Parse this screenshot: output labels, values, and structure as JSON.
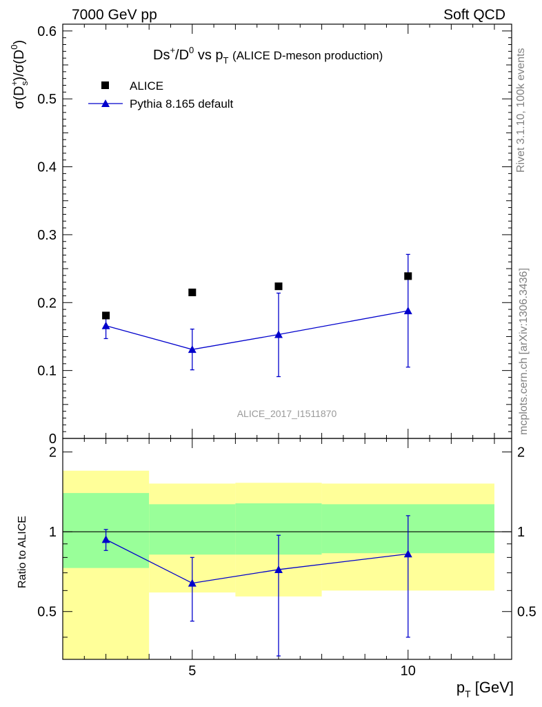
{
  "header": {
    "energy": "7000 GeV pp",
    "category": "Soft QCD"
  },
  "side_labels": {
    "rivet": "Rivet 3.1.10,  100k events",
    "mcplots": "mcplots.cern.ch [arXiv:1306.3436]"
  },
  "colors": {
    "data": "#000000",
    "mc": "#0000cc",
    "band_inner": "#99ff99",
    "band_outer": "#ffff99"
  },
  "chart_data": {
    "type": "scatter",
    "title_main": "Ds",
    "title_sup1": "+",
    "title_mid": "/D",
    "title_sup2": "0",
    "title_vs": " vs p",
    "title_sub": "T",
    "title_paren": "(ALICE D-meson production)",
    "ylabel_parts": [
      "σ(D",
      "+",
      "s",
      ")/σ(D",
      "0",
      ")"
    ],
    "xlabel_main": "p",
    "xlabel_sub": "T",
    "xlabel_unit": "[GeV]",
    "analysis_id": "ALICE_2017_I1511870",
    "xlim": [
      2,
      12.4
    ],
    "ylim": [
      0,
      0.61
    ],
    "x_ticks": [
      5,
      10
    ],
    "y_ticks": [
      0,
      0.1,
      0.2,
      0.3,
      0.4,
      0.5,
      0.6
    ],
    "y_tick_labels": [
      "0",
      "0.1",
      "0.2",
      "0.3",
      "0.4",
      "0.5",
      "0.6"
    ],
    "legend": [
      {
        "name": "ALICE",
        "marker": "square"
      },
      {
        "name": "Pythia 8.165 default",
        "marker": "triangle"
      }
    ],
    "series": [
      {
        "name": "ALICE",
        "x": [
          3,
          5,
          7,
          10
        ],
        "y": [
          0.181,
          0.215,
          0.224,
          0.239
        ]
      },
      {
        "name": "Pythia 8.165 default",
        "x": [
          3,
          5,
          7,
          10
        ],
        "y": [
          0.166,
          0.131,
          0.153,
          0.188
        ],
        "err_low": [
          0.147,
          0.101,
          0.091,
          0.105
        ],
        "err_high": [
          0.184,
          0.161,
          0.214,
          0.271
        ]
      }
    ],
    "ratio": {
      "ylabel": "Ratio to ALICE",
      "ylim": [
        0.33,
        2.25
      ],
      "y_ticks": [
        0.5,
        1,
        2
      ],
      "y_tick_labels": [
        "0.5",
        "1",
        "2"
      ],
      "bands": [
        {
          "x0": 2,
          "x1": 4,
          "inner": [
            0.73,
            1.4
          ],
          "outer": [
            0.33,
            1.7
          ]
        },
        {
          "x0": 4,
          "x1": 6,
          "inner": [
            0.82,
            1.27
          ],
          "outer": [
            0.59,
            1.52
          ]
        },
        {
          "x0": 6,
          "x1": 8,
          "inner": [
            0.82,
            1.28
          ],
          "outer": [
            0.57,
            1.53
          ]
        },
        {
          "x0": 8,
          "x1": 12,
          "inner": [
            0.83,
            1.27
          ],
          "outer": [
            0.6,
            1.52
          ]
        }
      ],
      "mc": {
        "x": [
          3,
          5,
          7,
          10
        ],
        "y": [
          0.935,
          0.64,
          0.72,
          0.825
        ],
        "err_low": [
          0.85,
          0.46,
          0.34,
          0.4
        ],
        "err_high": [
          1.02,
          0.8,
          0.97,
          1.15
        ]
      }
    }
  }
}
